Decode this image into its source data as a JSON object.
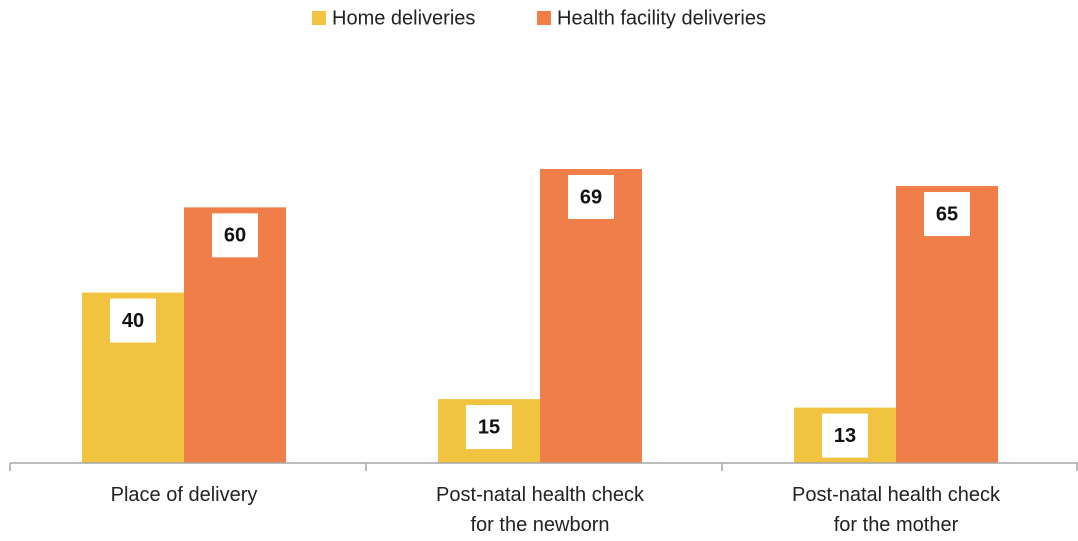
{
  "chart_data": {
    "type": "bar",
    "categories": [
      "Place of delivery",
      "Post-natal health check\nfor the newborn",
      "Post-natal health check\nfor the mother"
    ],
    "series": [
      {
        "name": "Home deliveries",
        "color": "#f2c241",
        "values": [
          40,
          15,
          13
        ]
      },
      {
        "name": "Health facility deliveries",
        "color": "#f07e48",
        "values": [
          60,
          69,
          65
        ]
      }
    ],
    "legend": "top"
  }
}
